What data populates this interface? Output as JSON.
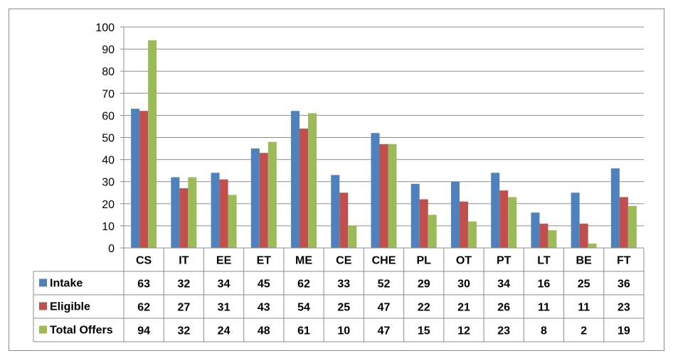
{
  "chart_data": {
    "type": "bar",
    "categories": [
      "CS",
      "IT",
      "EE",
      "ET",
      "ME",
      "CE",
      "CHE",
      "PL",
      "OT",
      "PT",
      "LT",
      "BE",
      "FT"
    ],
    "series": [
      {
        "name": "Intake",
        "color": "#4f81bd",
        "values": [
          63,
          32,
          34,
          45,
          62,
          33,
          52,
          29,
          30,
          34,
          16,
          25,
          36
        ]
      },
      {
        "name": "Eligible",
        "color": "#c0504d",
        "values": [
          62,
          27,
          31,
          43,
          54,
          25,
          47,
          22,
          21,
          26,
          11,
          11,
          23
        ]
      },
      {
        "name": "Total Offers",
        "color": "#9bbb59",
        "values": [
          94,
          32,
          24,
          48,
          61,
          10,
          47,
          15,
          12,
          23,
          8,
          2,
          19
        ]
      }
    ],
    "ylim": [
      0,
      100
    ],
    "yticks": [
      0,
      10,
      20,
      30,
      40,
      50,
      60,
      70,
      80,
      90,
      100
    ],
    "grid": true,
    "legend": "data-table-left"
  }
}
